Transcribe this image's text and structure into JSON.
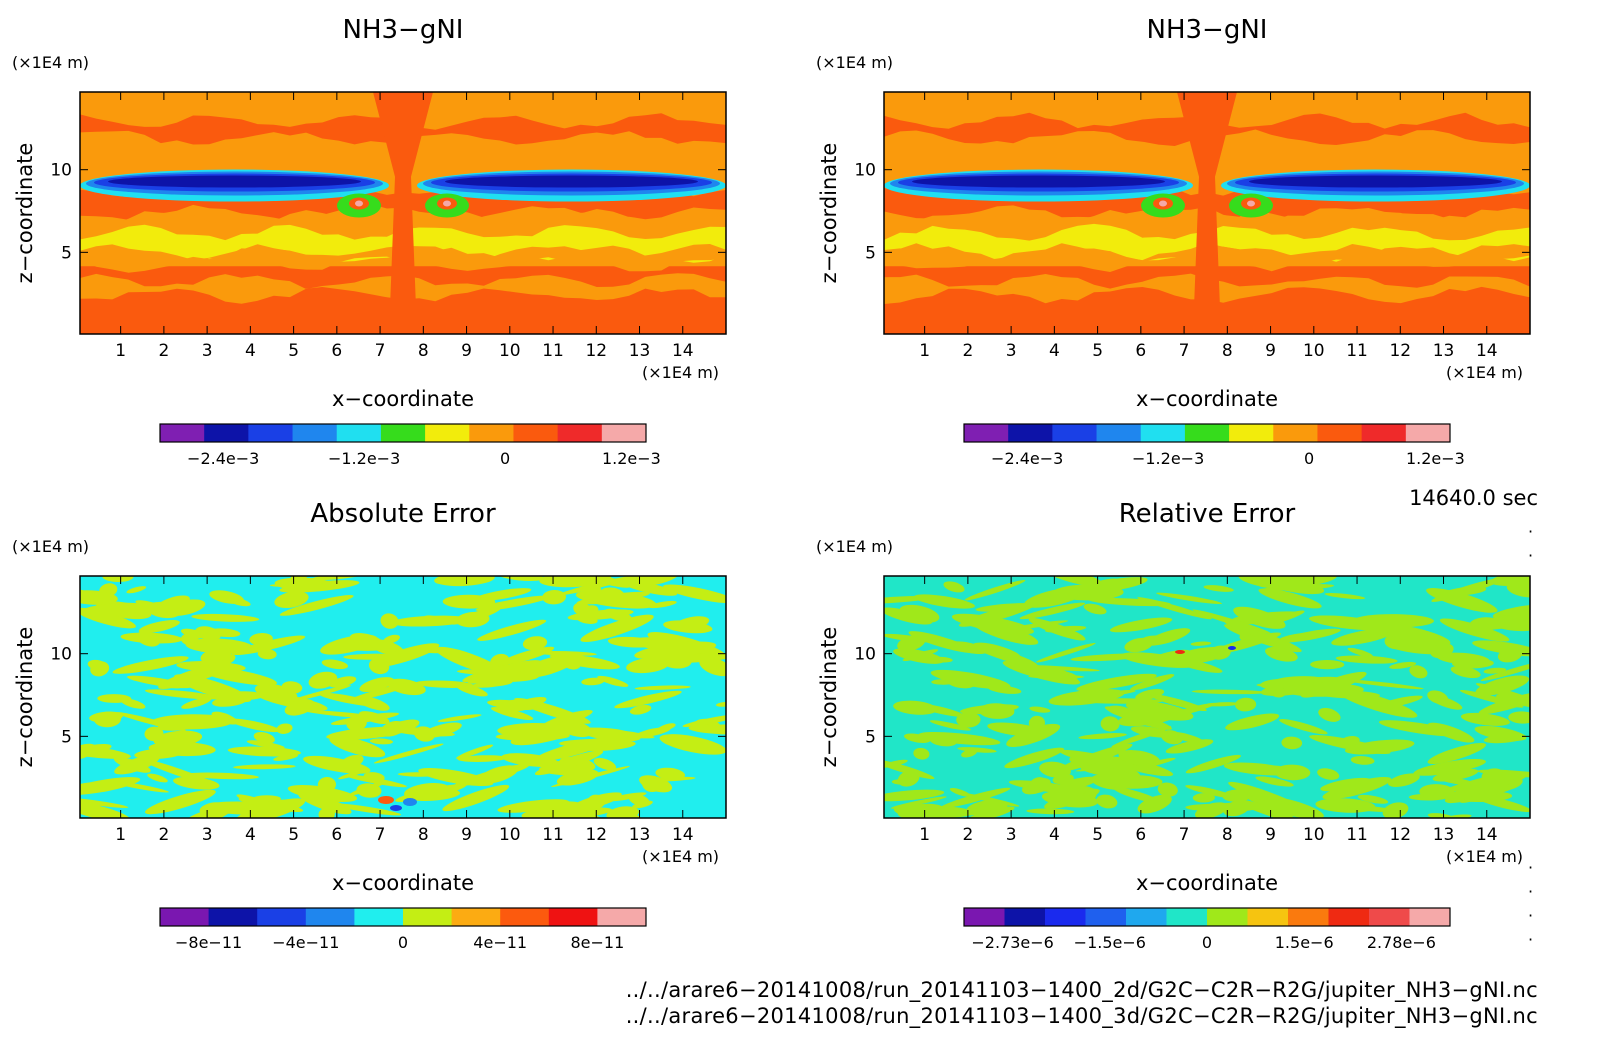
{
  "colors": {
    "nh3": [
      "#7f1fb2",
      "#0d13a8",
      "#1a40e6",
      "#1f86ee",
      "#20dff0",
      "#36dc1c",
      "#f2ec0c",
      "#fa9a0c",
      "#fa5a0e",
      "#ef2a2a",
      "#f5a9a9"
    ],
    "abs_err": [
      "#7a17b0",
      "#0d13a8",
      "#1a40e6",
      "#1f86ee",
      "#20eeee",
      "#c4ee14",
      "#fcab12",
      "#fc5a0e",
      "#ef1212",
      "#f5a9a9"
    ],
    "rel_err": [
      "#7a17b0",
      "#0d13a8",
      "#1a2aee",
      "#1f60ee",
      "#1fa8ee",
      "#20e6c8",
      "#a0e81a",
      "#f6c410",
      "#fa7a0e",
      "#ef2a12",
      "#ef4a4a",
      "#f5a9a9"
    ]
  },
  "labels": {
    "x_unit": "(×1E4 m)",
    "z_unit": "(×1E4 m)"
  },
  "chart_data": [
    {
      "type": "heatmap",
      "title": "NH3−gNI",
      "xlabel": "x−coordinate",
      "ylabel": "z−coordinate",
      "x_unit": "(×1E4 m)",
      "z_unit": "(×1E4 m)",
      "xlim": [
        0.06,
        15.0
      ],
      "ylim": [
        0.06,
        14.7
      ],
      "x_ticks": [
        "1",
        "2",
        "3",
        "4",
        "5",
        "6",
        "7",
        "8",
        "9",
        "10",
        "11",
        "12",
        "13",
        "14"
      ],
      "y_ticks": [
        "5",
        "10"
      ],
      "colorbar_ticks": [
        "−2.4e−3",
        "−1.2e−3",
        "0",
        "1.2e−3"
      ],
      "colorbar_levels": 11,
      "field": "nh3"
    },
    {
      "type": "heatmap",
      "title": "NH3−gNI",
      "xlabel": "x−coordinate",
      "ylabel": "z−coordinate",
      "x_unit": "(×1E4 m)",
      "z_unit": "(×1E4 m)",
      "xlim": [
        0.06,
        15.0
      ],
      "ylim": [
        0.06,
        14.7
      ],
      "x_ticks": [
        "1",
        "2",
        "3",
        "4",
        "5",
        "6",
        "7",
        "8",
        "9",
        "10",
        "11",
        "12",
        "13",
        "14"
      ],
      "y_ticks": [
        "5",
        "10"
      ],
      "colorbar_ticks": [
        "−2.4e−3",
        "−1.2e−3",
        "0",
        "1.2e−3"
      ],
      "colorbar_levels": 11,
      "field": "nh3"
    },
    {
      "type": "heatmap",
      "title": "Absolute Error",
      "xlabel": "x−coordinate",
      "ylabel": "z−coordinate",
      "x_unit": "(×1E4 m)",
      "z_unit": "(×1E4 m)",
      "xlim": [
        0.06,
        15.0
      ],
      "ylim": [
        0.06,
        14.7
      ],
      "x_ticks": [
        "1",
        "2",
        "3",
        "4",
        "5",
        "6",
        "7",
        "8",
        "9",
        "10",
        "11",
        "12",
        "13",
        "14"
      ],
      "y_ticks": [
        "5",
        "10"
      ],
      "colorbar_ticks": [
        "−8e−11",
        "−4e−11",
        "0",
        "4e−11",
        "8e−11"
      ],
      "colorbar_levels": 10,
      "field": "abs_err"
    },
    {
      "type": "heatmap",
      "title": "Relative Error",
      "xlabel": "x−coordinate",
      "ylabel": "z−coordinate",
      "x_unit": "(×1E4 m)",
      "z_unit": "(×1E4 m)",
      "xlim": [
        0.06,
        15.0
      ],
      "ylim": [
        0.06,
        14.7
      ],
      "x_ticks": [
        "1",
        "2",
        "3",
        "4",
        "5",
        "6",
        "7",
        "8",
        "9",
        "10",
        "11",
        "12",
        "13",
        "14"
      ],
      "y_ticks": [
        "5",
        "10"
      ],
      "colorbar_ticks": [
        "−2.73e−6",
        "−1.5e−6",
        "0",
        "1.5e−6",
        "2.78e−6"
      ],
      "colorbar_levels": 12,
      "field": "rel_err"
    }
  ],
  "timestamp": "14640.0 sec",
  "footer": {
    "file_2d": "../../arare6−20141008/run_20141103−1400_2d/G2C−C2R−R2G/jupiter_NH3−gNI.nc",
    "file_3d": "../../arare6−20141008/run_20141103−1400_3d/G2C−C2R−R2G/jupiter_NH3−gNI.nc"
  }
}
